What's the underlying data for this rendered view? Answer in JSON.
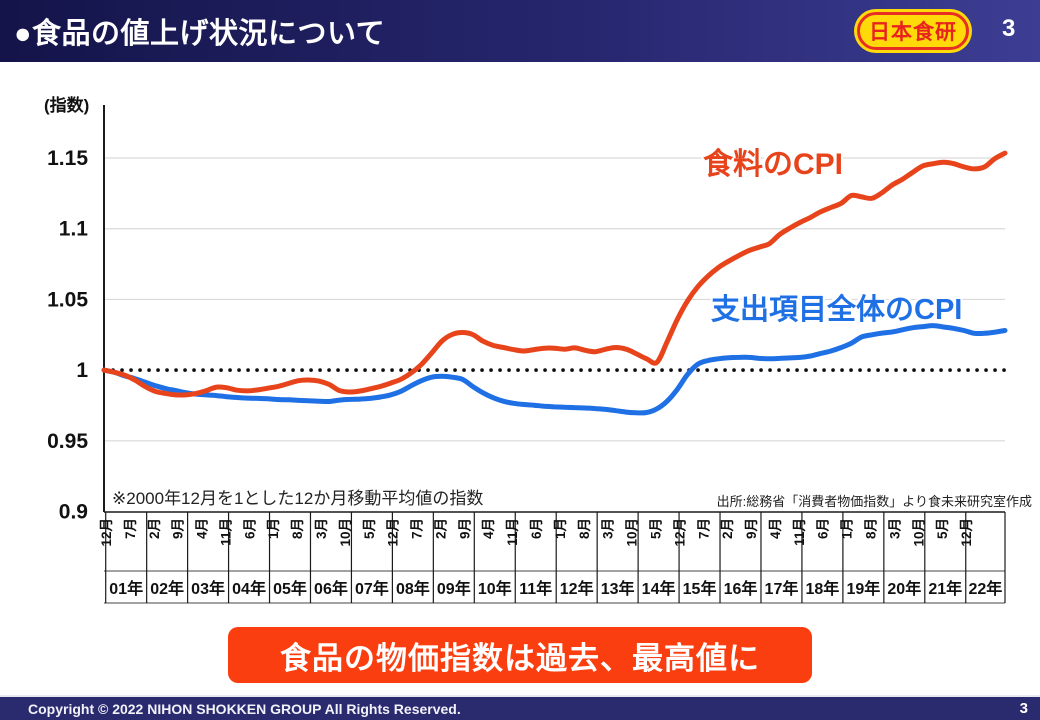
{
  "header": {
    "title": "●食品の値上げ状況について",
    "logo_text": "日本食研",
    "page_number": "3"
  },
  "banner": {
    "text": "食品の物価指数は過去、最高値に",
    "bg_color": "#fa3e10"
  },
  "footer": {
    "copyright": "Copyright © 2022 NIHON SHOKKEN GROUP All Rights Reserved.",
    "page_number": "3"
  },
  "chart_data": {
    "type": "line",
    "axis_unit_label": "(指数)",
    "note": "※2000年12月を1とした12か月移動平均値の指数",
    "source": "出所:総務省「消費者物価指数」より食未来研究室作成",
    "ylim": [
      0.9,
      1.1875
    ],
    "yticks": [
      0.9,
      0.95,
      1,
      1.05,
      1.1,
      1.15
    ],
    "ytick_labels": [
      "0.9",
      "0.95",
      "1",
      "1.05",
      "1.1",
      "1.15"
    ],
    "baseline_value": 1,
    "grid": "horizontal",
    "x_start": "2000年12月",
    "x_total_months": 264,
    "sample_interval_months": 3,
    "month_tick_interval": 7,
    "month_tick_labels": [
      "12月",
      "7月",
      "2月",
      "9月",
      "4月",
      "11月",
      "6月",
      "1月",
      "8月",
      "3月",
      "10月",
      "5月",
      "12月",
      "7月",
      "2月",
      "9月",
      "4月",
      "11月",
      "6月",
      "1月",
      "8月",
      "3月",
      "10月",
      "5月",
      "12月",
      "7月",
      "2月",
      "9月",
      "4月",
      "11月",
      "6月",
      "1月",
      "8月",
      "3月",
      "10月",
      "5月",
      "12月"
    ],
    "year_labels": [
      "01年",
      "02年",
      "03年",
      "04年",
      "05年",
      "06年",
      "07年",
      "08年",
      "09年",
      "10年",
      "11年",
      "12年",
      "13年",
      "14年",
      "15年",
      "16年",
      "17年",
      "18年",
      "19年",
      "20年",
      "21年",
      "22年"
    ],
    "colors": {
      "grid": "#d9d9d9",
      "axis": "#1a1a1a",
      "baseline_dots": "#111111",
      "banner_bg": "#fa3e10",
      "header_navy": "#26266e",
      "footer_navy": "#2a2a6e",
      "logo_yellow": "#ffd908",
      "logo_red": "#e8231e"
    },
    "series": [
      {
        "name": "支出項目全体のCPI",
        "color": "#1e70e4",
        "values": [
          1.0,
          0.9985,
          0.996,
          0.994,
          0.9915,
          0.989,
          0.987,
          0.9855,
          0.984,
          0.983,
          0.9825,
          0.982,
          0.9812,
          0.9806,
          0.9802,
          0.98,
          0.9797,
          0.9792,
          0.979,
          0.9786,
          0.9783,
          0.978,
          0.9778,
          0.9788,
          0.9793,
          0.9795,
          0.98,
          0.981,
          0.9825,
          0.985,
          0.989,
          0.9925,
          0.995,
          0.9956,
          0.995,
          0.9935,
          0.9885,
          0.984,
          0.9805,
          0.978,
          0.9765,
          0.9757,
          0.9752,
          0.9745,
          0.974,
          0.9738,
          0.9735,
          0.9732,
          0.9728,
          0.9722,
          0.9713,
          0.9703,
          0.9698,
          0.97,
          0.9726,
          0.978,
          0.9865,
          0.997,
          1.0042,
          1.0068,
          1.008,
          1.0088,
          1.009,
          1.009,
          1.0083,
          1.008,
          1.0083,
          1.0086,
          1.009,
          1.01,
          1.0118,
          1.0135,
          1.016,
          1.019,
          1.0235,
          1.025,
          1.0262,
          1.027,
          1.0285,
          1.03,
          1.0308,
          1.0315,
          1.0305,
          1.0295,
          1.028,
          1.026,
          1.026,
          1.0268,
          1.028
        ]
      },
      {
        "name": "食料のCPI",
        "color": "#e8441c",
        "values": [
          1.0,
          0.9985,
          0.9965,
          0.993,
          0.9885,
          0.985,
          0.9835,
          0.9825,
          0.9825,
          0.9835,
          0.9855,
          0.988,
          0.9875,
          0.9858,
          0.9853,
          0.986,
          0.9872,
          0.9885,
          0.9905,
          0.9925,
          0.993,
          0.9922,
          0.9898,
          0.9855,
          0.9845,
          0.9852,
          0.9868,
          0.9885,
          0.9908,
          0.9935,
          0.998,
          1.004,
          1.012,
          1.0205,
          1.0252,
          1.0266,
          1.0252,
          1.0205,
          1.0175,
          1.016,
          1.0145,
          1.0135,
          1.0145,
          1.0155,
          1.0155,
          1.0148,
          1.0157,
          1.014,
          1.013,
          1.0148,
          1.016,
          1.0148,
          1.0115,
          1.008,
          1.0055,
          1.02,
          1.036,
          1.049,
          1.059,
          1.0665,
          1.0725,
          1.077,
          1.081,
          1.0845,
          1.087,
          1.0895,
          1.096,
          1.1005,
          1.1045,
          1.108,
          1.112,
          1.115,
          1.118,
          1.1235,
          1.1225,
          1.1215,
          1.1255,
          1.131,
          1.135,
          1.14,
          1.1445,
          1.146,
          1.147,
          1.146,
          1.1437,
          1.1423,
          1.1437,
          1.1495,
          1.1535
        ]
      }
    ]
  }
}
